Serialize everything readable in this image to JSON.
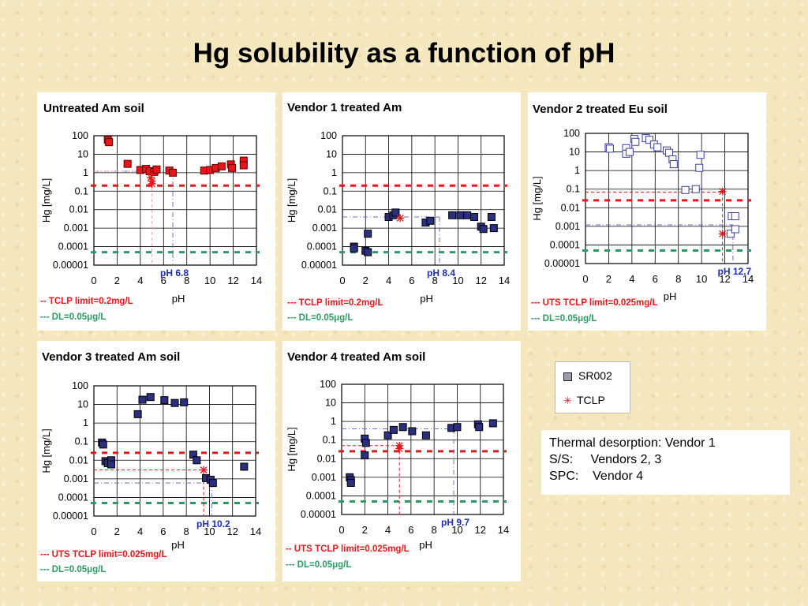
{
  "title": "Hg solubility as a function of pH",
  "legend": {
    "sr002": "SR002",
    "tclp": "TCLP"
  },
  "info": {
    "lines": [
      "Thermal desorption: Vendor 1",
      "S/S:     Vendors 2, 3",
      "SPC:    Vendor 4"
    ]
  },
  "colors": {
    "red": "#e8151b",
    "green": "#2e9a63",
    "navy": "#2a2f7f",
    "label_blue": "#1d2db5",
    "hollow": "#3b3f9a"
  },
  "chart_data": [
    {
      "id": "untreated",
      "type": "scatter",
      "title": "Untreated Am soil",
      "xlabel": "pH",
      "ylabel": "Hg [mg/L]",
      "xlim": [
        0,
        14
      ],
      "ylim": [
        1e-05,
        100
      ],
      "yscale": "log",
      "xticks": [
        "0",
        "2",
        "4",
        "6",
        "8",
        "10",
        "12",
        "14"
      ],
      "yticks": [
        "0.00001",
        "0.0001",
        "0.001",
        "0.01",
        "0.1",
        "1",
        "10",
        "100"
      ],
      "marker_style": "red-filled",
      "series": [
        {
          "name": "SR002",
          "points": [
            [
              1.2,
              60
            ],
            [
              1.3,
              45
            ],
            [
              2.9,
              3
            ],
            [
              4.0,
              1.4
            ],
            [
              4.5,
              1.6
            ],
            [
              4.8,
              1.2
            ],
            [
              5.2,
              1.1
            ],
            [
              5.4,
              1.5
            ],
            [
              6.5,
              1.3
            ],
            [
              6.8,
              1.0
            ],
            [
              9.5,
              1.3
            ],
            [
              10.0,
              1.4
            ],
            [
              10.5,
              1.8
            ],
            [
              11.0,
              2.2
            ],
            [
              11.8,
              2.8
            ],
            [
              11.9,
              1.8
            ],
            [
              12.9,
              4.5
            ],
            [
              12.9,
              2.5
            ]
          ]
        },
        {
          "name": "TCLP",
          "points": [
            [
              4.9,
              0.55
            ],
            [
              5.0,
              0.35
            ],
            [
              5.0,
              0.25
            ]
          ]
        }
      ],
      "limit_line": {
        "label": "-- TCLP limit=0.2mg/L",
        "value": 0.2
      },
      "dl_line": {
        "label": "--- DL=0.05μg/L",
        "value": 5e-05
      },
      "ph_marker": {
        "label": "pH 6.8",
        "x": 6.8,
        "y": 1.2
      },
      "extra_guides": [
        {
          "x": 5.0,
          "y_top": 1.2,
          "color": "pink"
        }
      ]
    },
    {
      "id": "vendor1",
      "type": "scatter",
      "title": "Vendor 1 treated Am",
      "xlabel": "pH",
      "ylabel": "Hg [mg/L]",
      "xlim": [
        0,
        14
      ],
      "ylim": [
        1e-05,
        100
      ],
      "yscale": "log",
      "xticks": [
        "0",
        "2",
        "4",
        "6",
        "8",
        "10",
        "12",
        "14"
      ],
      "yticks": [
        "0.00001",
        "0.0001",
        "0.001",
        "0.01",
        "0.1",
        "1",
        "10",
        "100"
      ],
      "marker_style": "navy-filled",
      "series": [
        {
          "name": "SR002",
          "points": [
            [
              1.0,
              0.0001
            ],
            [
              1.0,
              8e-05
            ],
            [
              2.0,
              6e-05
            ],
            [
              2.2,
              5e-05
            ],
            [
              2.2,
              0.0005
            ],
            [
              4.0,
              0.004
            ],
            [
              4.4,
              0.005
            ],
            [
              4.6,
              0.007
            ],
            [
              7.2,
              0.002
            ],
            [
              7.6,
              0.0025
            ],
            [
              9.5,
              0.005
            ],
            [
              10.2,
              0.005
            ],
            [
              10.8,
              0.005
            ],
            [
              11.4,
              0.004
            ],
            [
              12.0,
              0.0012
            ],
            [
              12.2,
              0.0009
            ],
            [
              12.9,
              0.004
            ],
            [
              13.1,
              0.001
            ]
          ]
        },
        {
          "name": "TCLP",
          "points": [
            [
              5.0,
              0.0035
            ]
          ]
        }
      ],
      "limit_line": {
        "label": "--- TCLP limit=0.2mg/L",
        "value": 0.2
      },
      "dl_line": {
        "label": "--- DL=0.05μg/L",
        "value": 5e-05
      },
      "ph_marker": {
        "label": "pH 8.4",
        "x": 8.4,
        "y": 0.004
      }
    },
    {
      "id": "vendor2",
      "type": "scatter",
      "title": "Vendor 2 treated Eu soil",
      "xlabel": "pH",
      "ylabel": "Hg [mg/L]",
      "xlim": [
        0,
        14
      ],
      "ylim": [
        1e-05,
        100
      ],
      "yscale": "log",
      "xticks": [
        "0",
        "2",
        "4",
        "6",
        "8",
        "10",
        "12",
        "14"
      ],
      "yticks": [
        "0.00001",
        "0.0001",
        "0.001",
        "0.01",
        "0.1",
        "1",
        "10",
        "100"
      ],
      "marker_style": "hollow",
      "series": [
        {
          "name": "SR002",
          "points": [
            [
              2.0,
              18
            ],
            [
              2.1,
              15
            ],
            [
              3.5,
              16
            ],
            [
              3.5,
              8
            ],
            [
              3.8,
              10
            ],
            [
              4.2,
              50
            ],
            [
              4.3,
              35
            ],
            [
              5.2,
              55
            ],
            [
              5.5,
              45
            ],
            [
              5.9,
              25
            ],
            [
              6.2,
              18
            ],
            [
              7.0,
              12
            ],
            [
              7.2,
              9
            ],
            [
              7.5,
              4
            ],
            [
              7.6,
              2.2
            ],
            [
              8.6,
              0.09
            ],
            [
              9.5,
              0.1
            ],
            [
              9.9,
              7
            ],
            [
              9.8,
              1.4
            ],
            [
              12.5,
              0.0004
            ],
            [
              12.6,
              0.0035
            ],
            [
              12.9,
              0.0035
            ],
            [
              12.9,
              0.0007
            ]
          ]
        },
        {
          "name": "TCLP",
          "points": [
            [
              11.8,
              0.075
            ],
            [
              11.8,
              0.0004
            ]
          ]
        }
      ],
      "limit_line": {
        "label": "--- UTS TCLP limit=0.025mg/L",
        "value": 0.025
      },
      "dl_line": {
        "label": "--- DL=0.05μg/L",
        "value": 5e-05
      },
      "ph_marker": {
        "label": "pH 12.7",
        "x": 12.7,
        "y": 0.0012
      },
      "extra_guides": [
        {
          "x": 11.8,
          "y_top": 0.07,
          "color": "red"
        }
      ]
    },
    {
      "id": "vendor3",
      "type": "scatter",
      "title": "Vendor 3 treated Am soil",
      "xlabel": "pH",
      "ylabel": "Hg [mg/L]",
      "xlim": [
        0,
        14
      ],
      "ylim": [
        1e-05,
        100
      ],
      "yscale": "log",
      "xticks": [
        "0",
        "2",
        "4",
        "6",
        "8",
        "10",
        "12",
        "14"
      ],
      "yticks": [
        "0.00001",
        "0.0001",
        "0.001",
        "0.01",
        "0.1",
        "1",
        "10",
        "100"
      ],
      "marker_style": "navy-filled",
      "series": [
        {
          "name": "SR002",
          "points": [
            [
              0.7,
              0.09
            ],
            [
              0.8,
              0.07
            ],
            [
              1.0,
              0.009
            ],
            [
              1.2,
              0.007
            ],
            [
              1.5,
              0.01
            ],
            [
              1.5,
              0.006
            ],
            [
              3.8,
              3
            ],
            [
              4.2,
              18
            ],
            [
              4.9,
              25
            ],
            [
              6.1,
              17
            ],
            [
              7.0,
              12
            ],
            [
              7.8,
              13
            ],
            [
              8.6,
              0.02
            ],
            [
              8.9,
              0.01
            ],
            [
              9.7,
              0.0011
            ],
            [
              10.1,
              0.0009
            ],
            [
              10.3,
              0.0006
            ],
            [
              13.0,
              0.0045
            ]
          ]
        },
        {
          "name": "TCLP",
          "points": [
            [
              9.5,
              0.003
            ]
          ]
        }
      ],
      "limit_line": {
        "label": "--- UTS TCLP limit=0.025mg/L",
        "value": 0.025
      },
      "dl_line": {
        "label": "--- DL=0.05μg/L",
        "value": 5e-05
      },
      "ph_marker": {
        "label": "pH 10.2",
        "x": 10.2,
        "y": 0.0006
      },
      "extra_guides": [
        {
          "x": 9.5,
          "y_top": 0.003,
          "color": "red"
        }
      ]
    },
    {
      "id": "vendor4",
      "type": "scatter",
      "title": "Vendor 4 treated Am soil",
      "xlabel": "pH",
      "ylabel": "Hg [mg/L]",
      "xlim": [
        0,
        14
      ],
      "ylim": [
        1e-05,
        100
      ],
      "yscale": "log",
      "xticks": [
        "0",
        "2",
        "4",
        "6",
        "8",
        "10",
        "12",
        "14"
      ],
      "yticks": [
        "0.00001",
        "0.0001",
        "0.001",
        "0.01",
        "0.1",
        "1",
        "10",
        "100"
      ],
      "marker_style": "navy-filled",
      "series": [
        {
          "name": "SR002",
          "points": [
            [
              0.7,
              0.001
            ],
            [
              0.8,
              0.0007
            ],
            [
              0.8,
              0.0005
            ],
            [
              2.0,
              0.12
            ],
            [
              2.1,
              0.07
            ],
            [
              2.0,
              0.015
            ],
            [
              4.0,
              0.18
            ],
            [
              4.5,
              0.35
            ],
            [
              5.3,
              0.5
            ],
            [
              6.1,
              0.3
            ],
            [
              7.3,
              0.18
            ],
            [
              9.5,
              0.45
            ],
            [
              10.0,
              0.5
            ],
            [
              11.8,
              0.7
            ],
            [
              11.9,
              0.5
            ],
            [
              13.1,
              0.8
            ]
          ]
        },
        {
          "name": "TCLP",
          "points": [
            [
              5.0,
              0.05
            ],
            [
              5.0,
              0.035
            ]
          ]
        }
      ],
      "limit_line": {
        "label": "-- UTS TCLP limit=0.025mg/L",
        "value": 0.025
      },
      "dl_line": {
        "label": "--- DL=0.05μg/L",
        "value": 5e-05
      },
      "ph_marker": {
        "label": "pH 9.7",
        "x": 9.7,
        "y": 0.4
      },
      "extra_guides": [
        {
          "x": 5.0,
          "y_top": 0.05,
          "color": "red"
        }
      ]
    }
  ]
}
